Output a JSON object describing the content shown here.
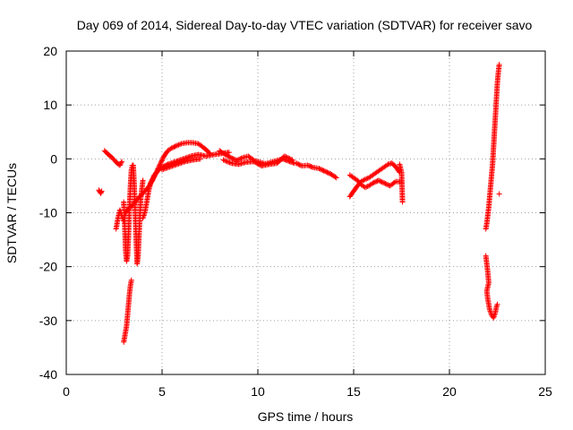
{
  "chart_data": {
    "type": "scatter",
    "title": "Day 069 of 2014, Sidereal Day-to-day VTEC variation (SDTVAR) for receiver savo",
    "xlabel": "GPS time / hours",
    "ylabel": "SDTVAR / TECUs",
    "xlim": [
      0,
      25
    ],
    "ylim": [
      -40,
      20
    ],
    "xticks": [
      0,
      5,
      10,
      15,
      20,
      25
    ],
    "yticks": [
      -40,
      -30,
      -20,
      -10,
      0,
      10,
      20
    ],
    "grid": true,
    "marker": "+",
    "series": [
      {
        "name": "SDTVAR",
        "color": "#ff0000",
        "segments": [
          [
            [
              1.7,
              -5.8
            ],
            [
              1.8,
              -6.4
            ],
            [
              1.85,
              -6.0
            ]
          ],
          [
            [
              2.0,
              1.5
            ],
            [
              2.2,
              0.8
            ],
            [
              2.4,
              0.2
            ],
            [
              2.6,
              -0.6
            ],
            [
              2.8,
              -1.2
            ],
            [
              2.9,
              -0.5
            ]
          ],
          [
            [
              2.6,
              -13.0
            ],
            [
              2.7,
              -11.0
            ],
            [
              2.8,
              -9.5
            ],
            [
              2.9,
              -10.5
            ],
            [
              3.0,
              -11.5
            ],
            [
              3.1,
              -10.0
            ],
            [
              3.3,
              -9.0
            ],
            [
              3.5,
              -8.5
            ],
            [
              3.7,
              -7.5
            ],
            [
              3.9,
              -6.8
            ],
            [
              4.1,
              -6.0
            ],
            [
              4.3,
              -5.2
            ],
            [
              4.5,
              -4.0
            ],
            [
              4.7,
              -2.5
            ],
            [
              4.9,
              -1.0
            ],
            [
              5.1,
              0.5
            ],
            [
              5.3,
              1.5
            ],
            [
              5.5,
              2.0
            ],
            [
              5.8,
              2.5
            ],
            [
              6.0,
              2.8
            ],
            [
              6.3,
              3.0
            ],
            [
              6.6,
              3.0
            ],
            [
              6.9,
              2.8
            ],
            [
              7.2,
              2.0
            ],
            [
              7.5,
              1.0
            ]
          ],
          [
            [
              3.0,
              -8.0
            ],
            [
              3.05,
              -12.0
            ],
            [
              3.1,
              -17.0
            ],
            [
              3.15,
              -19.0
            ],
            [
              3.2,
              -18.0
            ],
            [
              3.25,
              -14.0
            ],
            [
              3.3,
              -9.0
            ],
            [
              3.35,
              -5.0
            ],
            [
              3.4,
              -2.0
            ],
            [
              3.45,
              -1.2
            ]
          ],
          [
            [
              3.0,
              -34.0
            ],
            [
              3.05,
              -33.0
            ],
            [
              3.1,
              -32.0
            ],
            [
              3.15,
              -31.0
            ],
            [
              3.2,
              -29.0
            ],
            [
              3.25,
              -27.0
            ],
            [
              3.3,
              -25.0
            ],
            [
              3.35,
              -23.5
            ],
            [
              3.4,
              -22.5
            ]
          ],
          [
            [
              3.5,
              -1.2
            ],
            [
              3.55,
              -5.0
            ],
            [
              3.6,
              -10.0
            ],
            [
              3.65,
              -15.0
            ],
            [
              3.7,
              -19.5
            ],
            [
              3.75,
              -18.0
            ],
            [
              3.8,
              -14.0
            ],
            [
              3.85,
              -10.0
            ],
            [
              3.9,
              -7.0
            ],
            [
              4.0,
              -4.0
            ]
          ],
          [
            [
              4.0,
              -11.0
            ],
            [
              4.1,
              -10.0
            ],
            [
              4.2,
              -8.0
            ],
            [
              4.3,
              -6.0
            ],
            [
              4.4,
              -4.5
            ],
            [
              4.6,
              -3.0
            ],
            [
              4.9,
              -1.8
            ],
            [
              5.3,
              -1.0
            ],
            [
              5.7,
              -0.5
            ],
            [
              6.1,
              0.0
            ],
            [
              6.5,
              0.5
            ],
            [
              6.9,
              0.8
            ],
            [
              7.3,
              0.5
            ],
            [
              7.7,
              0.8
            ],
            [
              8.1,
              1.0
            ],
            [
              8.5,
              1.2
            ]
          ],
          [
            [
              5.0,
              -2.0
            ],
            [
              5.4,
              -1.5
            ],
            [
              5.8,
              -1.0
            ],
            [
              6.2,
              -0.5
            ],
            [
              6.6,
              -0.2
            ],
            [
              7.0,
              0.0
            ]
          ],
          [
            [
              8.0,
              1.5
            ],
            [
              8.3,
              0.8
            ],
            [
              8.6,
              0.2
            ],
            [
              8.9,
              -0.3
            ],
            [
              9.2,
              0.2
            ],
            [
              9.5,
              0.5
            ],
            [
              9.8,
              -0.3
            ],
            [
              10.1,
              -0.6
            ],
            [
              10.4,
              -0.9
            ],
            [
              10.7,
              -0.6
            ],
            [
              11.0,
              -0.3
            ],
            [
              11.3,
              0.0
            ],
            [
              11.6,
              -0.4
            ],
            [
              11.9,
              -0.8
            ]
          ],
          [
            [
              8.2,
              -0.2
            ],
            [
              8.6,
              -0.8
            ],
            [
              9.0,
              -1.0
            ],
            [
              9.4,
              -0.6
            ],
            [
              9.8,
              -0.5
            ],
            [
              10.2,
              -1.3
            ],
            [
              10.6,
              -1.0
            ],
            [
              11.0,
              -0.8
            ],
            [
              11.4,
              0.5
            ],
            [
              11.8,
              -0.2
            ]
          ],
          [
            [
              12.0,
              -0.8
            ],
            [
              12.3,
              -1.3
            ],
            [
              12.6,
              -1.2
            ],
            [
              12.9,
              -1.6
            ],
            [
              13.2,
              -1.8
            ],
            [
              13.5,
              -2.3
            ],
            [
              13.8,
              -2.8
            ],
            [
              14.1,
              -3.5
            ]
          ],
          [
            [
              14.8,
              -7.0
            ],
            [
              15.0,
              -6.0
            ],
            [
              15.2,
              -5.0
            ],
            [
              15.4,
              -4.2
            ],
            [
              15.6,
              -3.8
            ],
            [
              15.8,
              -3.5
            ],
            [
              16.0,
              -3.0
            ],
            [
              16.2,
              -2.5
            ],
            [
              16.4,
              -2.0
            ],
            [
              16.6,
              -1.5
            ],
            [
              16.8,
              -1.0
            ],
            [
              17.0,
              -0.8
            ],
            [
              17.2,
              -1.5
            ],
            [
              17.4,
              -2.5
            ]
          ],
          [
            [
              14.8,
              -3.0
            ],
            [
              15.0,
              -3.5
            ],
            [
              15.2,
              -4.0
            ],
            [
              15.4,
              -4.8
            ],
            [
              15.6,
              -5.3
            ],
            [
              15.8,
              -5.0
            ],
            [
              16.0,
              -4.5
            ],
            [
              16.3,
              -4.0
            ],
            [
              16.6,
              -4.5
            ],
            [
              16.9,
              -5.0
            ],
            [
              17.2,
              -4.2
            ],
            [
              17.5,
              -4.3
            ]
          ],
          [
            [
              17.4,
              -1.0
            ],
            [
              17.5,
              -2.5
            ],
            [
              17.55,
              -8.0
            ]
          ],
          [
            [
              21.9,
              -13.0
            ],
            [
              21.95,
              -12.0
            ],
            [
              22.0,
              -10.5
            ],
            [
              22.05,
              -9.0
            ],
            [
              22.1,
              -7.0
            ],
            [
              22.15,
              -5.0
            ],
            [
              22.2,
              -3.0
            ],
            [
              22.25,
              -1.0
            ],
            [
              22.3,
              2.0
            ],
            [
              22.35,
              5.0
            ],
            [
              22.4,
              8.0
            ],
            [
              22.45,
              11.0
            ],
            [
              22.5,
              14.0
            ],
            [
              22.55,
              16.0
            ],
            [
              22.6,
              17.5
            ]
          ],
          [
            [
              22.6,
              -6.5
            ]
          ],
          [
            [
              21.9,
              -18.0
            ],
            [
              21.95,
              -19.5
            ],
            [
              22.0,
              -21.0
            ],
            [
              22.05,
              -23.0
            ],
            [
              21.95,
              -24.5
            ],
            [
              22.0,
              -26.0
            ],
            [
              22.1,
              -28.0
            ],
            [
              22.2,
              -29.0
            ],
            [
              22.3,
              -29.5
            ],
            [
              22.4,
              -28.5
            ],
            [
              22.45,
              -27.5
            ],
            [
              22.5,
              -27.0
            ]
          ]
        ]
      }
    ]
  }
}
